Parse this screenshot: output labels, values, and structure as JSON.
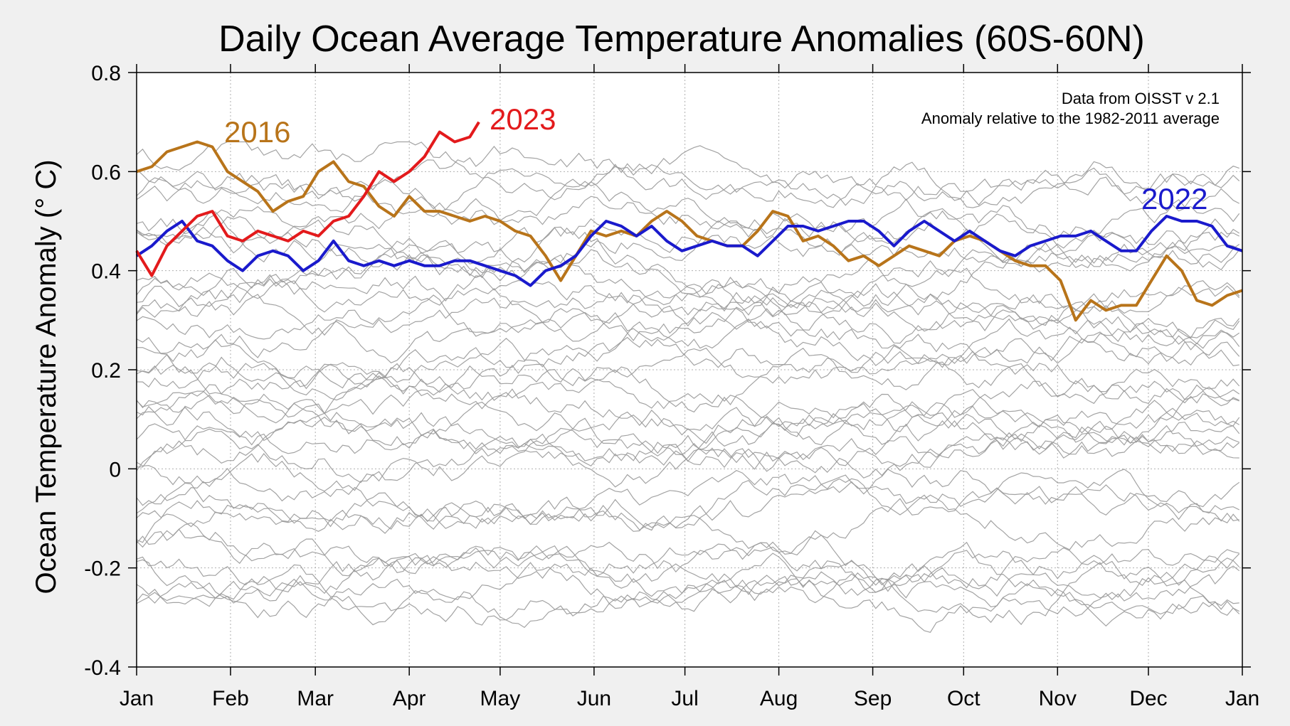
{
  "chart_data": {
    "type": "line",
    "title": "Daily Ocean Average Temperature Anomalies (60S-60N)",
    "ylabel": "Ocean Temperature Anomaly (° C)",
    "xlabel": "",
    "annotations": [
      "Data from OISST v 2.1",
      "Anomaly relative to the 1982-2011 average"
    ],
    "ylim": [
      -0.4,
      0.8
    ],
    "yticks": [
      0.8,
      0.6,
      0.4,
      0.2,
      0,
      -0.2,
      -0.4
    ],
    "ytick_labels": [
      "0.8",
      "0.6",
      "0.4",
      "0.2",
      "0",
      "-0.2",
      "-0.4"
    ],
    "xlim": [
      0,
      365
    ],
    "xticks": [
      0,
      31,
      59,
      90,
      120,
      151,
      181,
      212,
      243,
      273,
      304,
      334,
      365
    ],
    "xtick_labels": [
      "Jan",
      "Feb",
      "Mar",
      "Apr",
      "May",
      "Jun",
      "Jul",
      "Aug",
      "Sep",
      "Oct",
      "Nov",
      "Dec",
      "Jan"
    ],
    "grid": true,
    "colors": {
      "2023": "#e31a1c",
      "2016": "#b8741a",
      "2022": "#1a1acc",
      "other_years": "#999999"
    },
    "series": [
      {
        "name": "2023",
        "x": [
          0,
          5,
          10,
          15,
          20,
          25,
          30,
          35,
          40,
          45,
          50,
          55,
          60,
          65,
          70,
          75,
          80,
          85,
          90,
          95,
          100,
          105,
          110,
          113
        ],
        "values": [
          0.44,
          0.39,
          0.45,
          0.48,
          0.51,
          0.52,
          0.47,
          0.46,
          0.48,
          0.47,
          0.46,
          0.48,
          0.47,
          0.5,
          0.51,
          0.55,
          0.6,
          0.58,
          0.6,
          0.63,
          0.68,
          0.66,
          0.67,
          0.7
        ]
      },
      {
        "name": "2016",
        "x": [
          0,
          5,
          10,
          15,
          20,
          25,
          30,
          35,
          40,
          45,
          50,
          55,
          60,
          65,
          70,
          75,
          80,
          85,
          90,
          95,
          100,
          105,
          110,
          115,
          120,
          125,
          130,
          135,
          140,
          145,
          150,
          155,
          160,
          165,
          170,
          175,
          180,
          185,
          190,
          195,
          200,
          205,
          210,
          215,
          220,
          225,
          230,
          235,
          240,
          245,
          250,
          255,
          260,
          265,
          270,
          275,
          280,
          285,
          290,
          295,
          300,
          305,
          310,
          315,
          320,
          325,
          330,
          335,
          340,
          345,
          350,
          355,
          360,
          365
        ],
        "values": [
          0.6,
          0.61,
          0.64,
          0.65,
          0.66,
          0.65,
          0.6,
          0.58,
          0.56,
          0.52,
          0.54,
          0.55,
          0.6,
          0.62,
          0.58,
          0.57,
          0.53,
          0.51,
          0.55,
          0.52,
          0.52,
          0.51,
          0.5,
          0.51,
          0.5,
          0.48,
          0.47,
          0.43,
          0.38,
          0.43,
          0.48,
          0.47,
          0.48,
          0.47,
          0.5,
          0.52,
          0.5,
          0.47,
          0.46,
          0.45,
          0.45,
          0.48,
          0.52,
          0.51,
          0.46,
          0.47,
          0.45,
          0.42,
          0.43,
          0.41,
          0.43,
          0.45,
          0.44,
          0.43,
          0.46,
          0.47,
          0.46,
          0.44,
          0.42,
          0.41,
          0.41,
          0.38,
          0.3,
          0.34,
          0.32,
          0.33,
          0.33,
          0.38,
          0.43,
          0.4,
          0.34,
          0.33,
          0.35,
          0.36
        ]
      },
      {
        "name": "2022",
        "x": [
          0,
          5,
          10,
          15,
          20,
          25,
          30,
          35,
          40,
          45,
          50,
          55,
          60,
          65,
          70,
          75,
          80,
          85,
          90,
          95,
          100,
          105,
          110,
          115,
          120,
          125,
          130,
          135,
          140,
          145,
          150,
          155,
          160,
          165,
          170,
          175,
          180,
          185,
          190,
          195,
          200,
          205,
          210,
          215,
          220,
          225,
          230,
          235,
          240,
          245,
          250,
          255,
          260,
          265,
          270,
          275,
          280,
          285,
          290,
          295,
          300,
          305,
          310,
          315,
          320,
          325,
          330,
          335,
          340,
          345,
          350,
          355,
          360,
          365
        ],
        "values": [
          0.43,
          0.45,
          0.48,
          0.5,
          0.46,
          0.45,
          0.42,
          0.4,
          0.43,
          0.44,
          0.43,
          0.4,
          0.42,
          0.46,
          0.42,
          0.41,
          0.42,
          0.41,
          0.42,
          0.41,
          0.41,
          0.42,
          0.42,
          0.41,
          0.4,
          0.39,
          0.37,
          0.4,
          0.41,
          0.43,
          0.47,
          0.5,
          0.49,
          0.47,
          0.49,
          0.46,
          0.44,
          0.45,
          0.46,
          0.45,
          0.45,
          0.43,
          0.46,
          0.49,
          0.49,
          0.48,
          0.49,
          0.5,
          0.5,
          0.48,
          0.45,
          0.48,
          0.5,
          0.48,
          0.46,
          0.48,
          0.46,
          0.44,
          0.43,
          0.45,
          0.46,
          0.47,
          0.47,
          0.48,
          0.46,
          0.44,
          0.44,
          0.48,
          0.51,
          0.5,
          0.5,
          0.49,
          0.45,
          0.44
        ]
      }
    ]
  }
}
